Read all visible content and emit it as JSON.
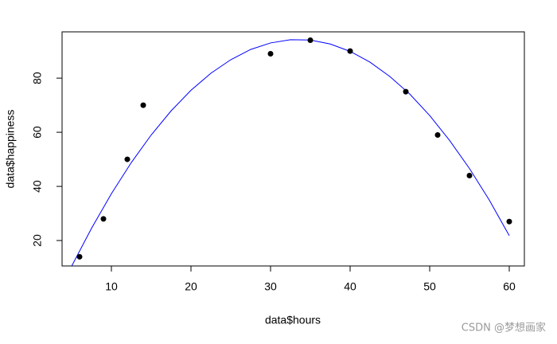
{
  "chart_data": {
    "type": "scatter",
    "xlabel": "data$hours",
    "ylabel": "data$happiness",
    "x": [
      6,
      9,
      12,
      14,
      30,
      35,
      40,
      47,
      51,
      55,
      60
    ],
    "values": [
      14,
      28,
      50,
      70,
      89,
      94,
      90,
      75,
      59,
      44,
      27
    ],
    "color": "#000000",
    "fit": {
      "color": "#0000ff",
      "x": [
        5,
        7.5,
        10,
        12.5,
        15,
        17.5,
        20,
        22.5,
        25,
        27.5,
        30,
        32.5,
        35,
        37.5,
        40,
        42.5,
        45,
        47.5,
        50,
        52.5,
        55,
        57.5,
        60
      ],
      "values": [
        10.5,
        24.5,
        37.3,
        48.8,
        59.0,
        67.9,
        75.5,
        81.8,
        86.8,
        90.6,
        93.0,
        94.2,
        94.1,
        92.6,
        89.9,
        85.9,
        80.6,
        74.1,
        66.2,
        57.0,
        46.6,
        34.9,
        21.8
      ]
    },
    "xlim": [
      3.8,
      61.9
    ],
    "ylim": [
      10.6,
      97.1
    ],
    "xticks": [
      10,
      20,
      30,
      40,
      50,
      60
    ],
    "yticks": [
      20,
      40,
      60,
      80
    ]
  },
  "watermark": "CSDN @梦想画家"
}
